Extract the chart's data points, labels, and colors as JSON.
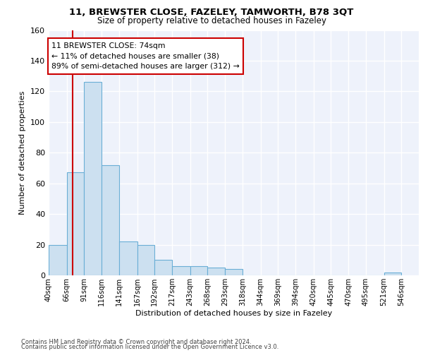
{
  "title1": "11, BREWSTER CLOSE, FAZELEY, TAMWORTH, B78 3QT",
  "title2": "Size of property relative to detached houses in Fazeley",
  "xlabel": "Distribution of detached houses by size in Fazeley",
  "ylabel": "Number of detached properties",
  "annotation_line1": "11 BREWSTER CLOSE: 74sqm",
  "annotation_line2": "← 11% of detached houses are smaller (38)",
  "annotation_line3": "89% of semi-detached houses are larger (312) →",
  "footer1": "Contains HM Land Registry data © Crown copyright and database right 2024.",
  "footer2": "Contains public sector information licensed under the Open Government Licence v3.0.",
  "bar_left_edges": [
    40,
    66,
    91,
    116,
    141,
    167,
    192,
    217,
    243,
    268,
    293,
    318,
    344,
    369,
    394,
    420,
    445,
    470,
    495,
    521
  ],
  "bar_heights": [
    20,
    67,
    126,
    72,
    22,
    20,
    10,
    6,
    6,
    5,
    4,
    0,
    0,
    0,
    0,
    0,
    0,
    0,
    0,
    2
  ],
  "bar_widths": [
    26,
    25,
    25,
    25,
    26,
    25,
    25,
    26,
    25,
    25,
    25,
    26,
    25,
    25,
    26,
    25,
    25,
    25,
    26,
    25
  ],
  "xlim_left": 40,
  "xlim_right": 571,
  "ylim_top": 160,
  "tick_labels": [
    "40sqm",
    "66sqm",
    "91sqm",
    "116sqm",
    "141sqm",
    "167sqm",
    "192sqm",
    "217sqm",
    "243sqm",
    "268sqm",
    "293sqm",
    "318sqm",
    "344sqm",
    "369sqm",
    "394sqm",
    "420sqm",
    "445sqm",
    "470sqm",
    "495sqm",
    "521sqm",
    "546sqm"
  ],
  "tick_positions": [
    40,
    66,
    91,
    116,
    141,
    167,
    192,
    217,
    243,
    268,
    293,
    318,
    344,
    369,
    394,
    420,
    445,
    470,
    495,
    521,
    546
  ],
  "property_x": 74,
  "bar_facecolor": "#cce0f0",
  "bar_edgecolor": "#6aaed6",
  "vline_color": "#cc0000",
  "bg_color": "#eef2fb",
  "annotation_box_color": "#ffffff",
  "annotation_box_edgecolor": "#cc0000",
  "yticks": [
    0,
    20,
    40,
    60,
    80,
    100,
    120,
    140,
    160
  ]
}
